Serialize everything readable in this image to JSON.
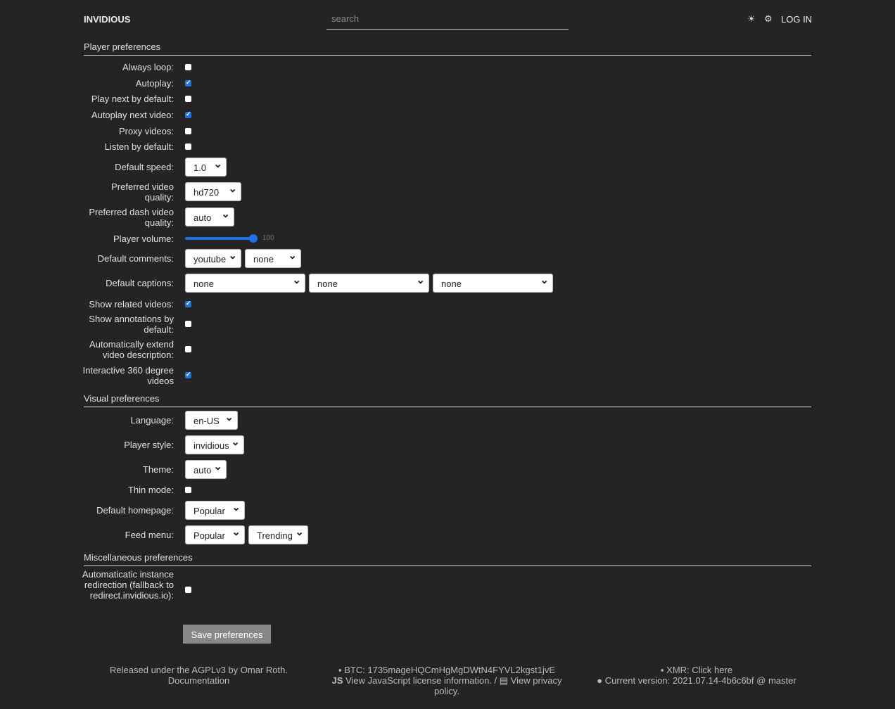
{
  "header": {
    "brand": "INVIDIOUS",
    "search_placeholder": "search",
    "theme_icon": "sun-icon",
    "settings_icon": "gear-icon",
    "login": "LOG IN"
  },
  "player": {
    "title": "Player preferences",
    "always_loop": {
      "label": "Always loop:",
      "checked": false
    },
    "autoplay": {
      "label": "Autoplay:",
      "checked": true
    },
    "play_next": {
      "label": "Play next by default:",
      "checked": false
    },
    "autoplay_next": {
      "label": "Autoplay next video:",
      "checked": true
    },
    "proxy": {
      "label": "Proxy videos:",
      "checked": false
    },
    "listen": {
      "label": "Listen by default:",
      "checked": false
    },
    "speed": {
      "label": "Default speed:",
      "value": "1.0"
    },
    "quality": {
      "label": "Preferred video quality:",
      "value": "hd720"
    },
    "dash": {
      "label": "Preferred dash video quality:",
      "value": "auto"
    },
    "volume": {
      "label": "Player volume:",
      "value": "100"
    },
    "comments": {
      "label": "Default comments:",
      "values": [
        "youtube",
        "none"
      ]
    },
    "captions": {
      "label": "Default captions:",
      "values": [
        "none",
        "none",
        "none"
      ]
    },
    "related": {
      "label": "Show related videos:",
      "checked": true
    },
    "annotations": {
      "label": "Show annotations by default:",
      "checked": false
    },
    "extend": {
      "label": "Automatically extend video description:",
      "checked": false
    },
    "v360": {
      "label": "Interactive 360 degree videos",
      "checked": true
    }
  },
  "visual": {
    "title": "Visual preferences",
    "language": {
      "label": "Language:",
      "value": "en-US"
    },
    "style": {
      "label": "Player style:",
      "value": "invidious"
    },
    "theme": {
      "label": "Theme:",
      "value": "auto"
    },
    "thin": {
      "label": "Thin mode:",
      "checked": false
    },
    "homepage": {
      "label": "Default homepage:",
      "value": "Popular"
    },
    "feed": {
      "label": "Feed menu:",
      "values": [
        "Popular",
        "Trending"
      ]
    }
  },
  "misc": {
    "title": "Miscellaneous preferences",
    "redirect": {
      "label": "Automaticatic instance redirection (fallback to redirect.invidious.io):",
      "checked": false
    }
  },
  "save": "Save preferences",
  "footer": {
    "license": "Released under the AGPLv3 by Omar Roth.",
    "docs": "Documentation",
    "btc": "BTC: 1735mageHQCmHgMgDWtN4FYVL2kgst1jvE",
    "js": "View JavaScript license information.",
    "sep": "/",
    "privacy": "View privacy policy.",
    "xmr": "XMR: Click here",
    "version": "Current version: 2021.07.14-4b6c6bf @ master"
  }
}
